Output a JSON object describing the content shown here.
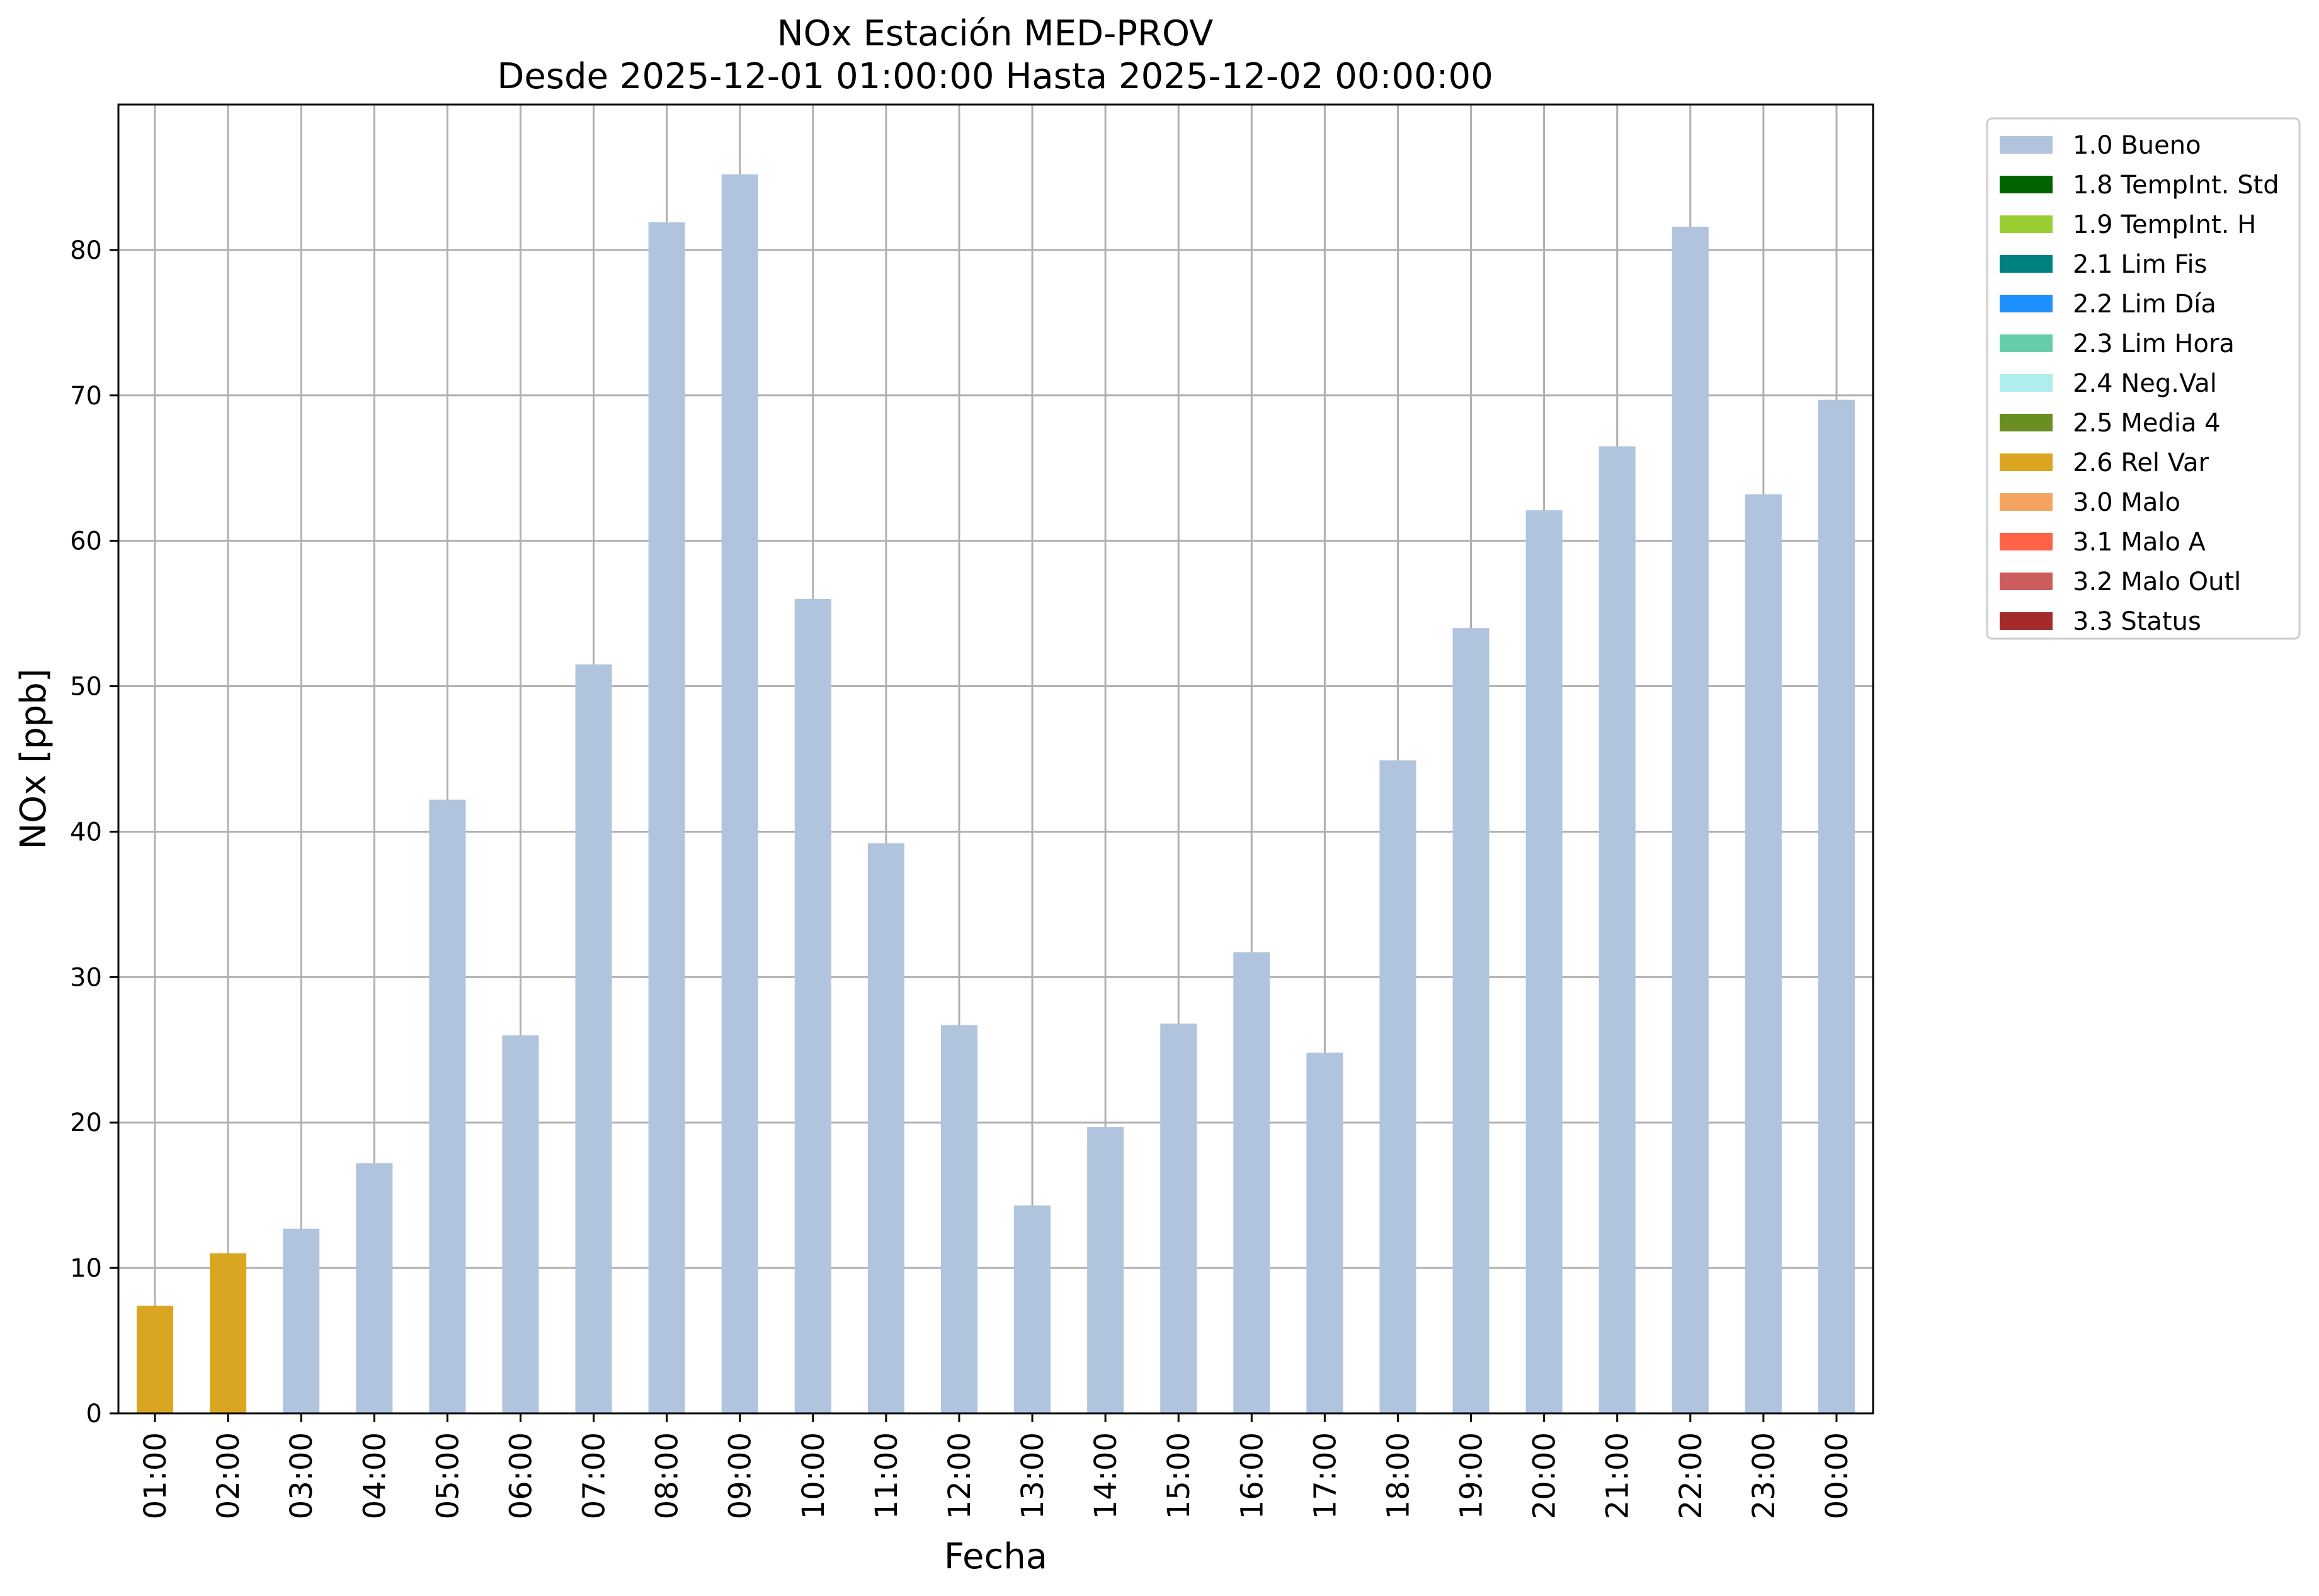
{
  "chart_data": {
    "type": "bar",
    "title": "NOx Estación MED-PROV",
    "subtitle": "Desde 2025-12-01 01:00:00 Hasta 2025-12-02 00:00:00",
    "xlabel": "Fecha",
    "ylabel": "NOx [ppb]",
    "ylim": [
      0,
      90
    ],
    "yticks": [
      0,
      10,
      20,
      30,
      40,
      50,
      60,
      70,
      80
    ],
    "grid": true,
    "legend_position": "outside-top-right",
    "categories": [
      "01:00",
      "02:00",
      "03:00",
      "04:00",
      "05:00",
      "06:00",
      "07:00",
      "08:00",
      "09:00",
      "10:00",
      "11:00",
      "12:00",
      "13:00",
      "14:00",
      "15:00",
      "16:00",
      "17:00",
      "18:00",
      "19:00",
      "20:00",
      "21:00",
      "22:00",
      "23:00",
      "00:00"
    ],
    "values": [
      7.4,
      11.0,
      12.7,
      17.2,
      42.2,
      26.0,
      51.5,
      81.9,
      85.2,
      56.0,
      39.2,
      26.7,
      14.3,
      19.7,
      26.8,
      31.7,
      24.8,
      44.9,
      54.0,
      62.1,
      66.5,
      81.6,
      63.2,
      69.7
    ],
    "flags": [
      "2.6 Rel Var",
      "2.6 Rel Var",
      "1.0 Bueno",
      "1.0 Bueno",
      "1.0 Bueno",
      "1.0 Bueno",
      "1.0 Bueno",
      "1.0 Bueno",
      "1.0 Bueno",
      "1.0 Bueno",
      "1.0 Bueno",
      "1.0 Bueno",
      "1.0 Bueno",
      "1.0 Bueno",
      "1.0 Bueno",
      "1.0 Bueno",
      "1.0 Bueno",
      "1.0 Bueno",
      "1.0 Bueno",
      "1.0 Bueno",
      "1.0 Bueno",
      "1.0 Bueno",
      "1.0 Bueno",
      "1.0 Bueno"
    ],
    "legend": [
      {
        "name": "1.0 Bueno",
        "color": "#b0c4de"
      },
      {
        "name": "1.8 TempInt. Std",
        "color": "#006400"
      },
      {
        "name": "1.9 TempInt. H",
        "color": "#9acd32"
      },
      {
        "name": "2.1 Lim Fis",
        "color": "#008080"
      },
      {
        "name": "2.2 Lim Día",
        "color": "#1e90ff"
      },
      {
        "name": "2.3 Lim Hora",
        "color": "#66cdaa"
      },
      {
        "name": "2.4 Neg.Val",
        "color": "#afeeee"
      },
      {
        "name": "2.5 Media 4",
        "color": "#6b8e23"
      },
      {
        "name": "2.6 Rel Var",
        "color": "#daa520"
      },
      {
        "name": "3.0 Malo",
        "color": "#f4a460"
      },
      {
        "name": "3.1 Malo A",
        "color": "#ff6347"
      },
      {
        "name": "3.2 Malo Outl",
        "color": "#cd5c5c"
      },
      {
        "name": "3.3 Status",
        "color": "#a52a2a"
      }
    ]
  }
}
